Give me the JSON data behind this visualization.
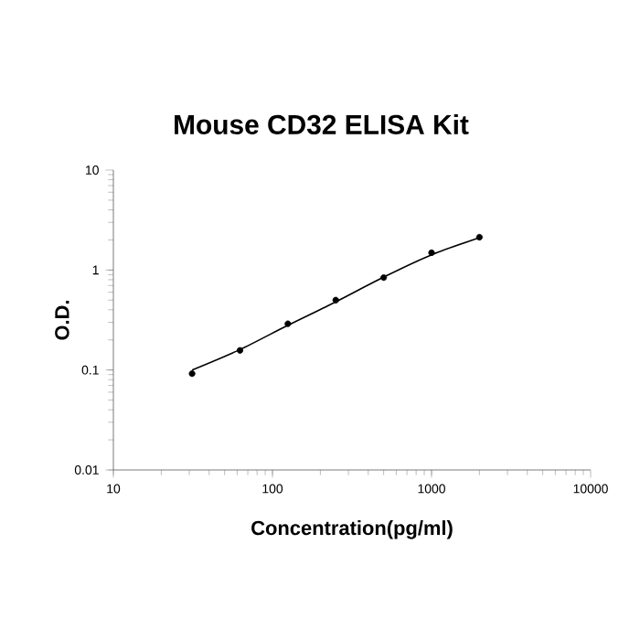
{
  "chart_data": {
    "type": "scatter",
    "title": "Mouse CD32 ELISA Kit",
    "xlabel": "Concentration(pg/ml)",
    "ylabel": "O.D.",
    "log": "xy",
    "xlim": [
      10,
      10000
    ],
    "ylim": [
      0.01,
      10
    ],
    "xticks": [
      10,
      100,
      1000,
      10000
    ],
    "yticks": [
      0.01,
      0.1,
      1,
      10
    ],
    "grid": false,
    "legend": false,
    "series": [
      {
        "marker": "circle",
        "color": "#000000",
        "x": [
          31.25,
          62.5,
          125,
          250,
          500,
          1000,
          2000
        ],
        "values": [
          0.092,
          0.157,
          0.29,
          0.5,
          0.84,
          1.49,
          2.13
        ]
      },
      {
        "type": "line",
        "color": "#000000",
        "marker": "none",
        "line_style": "solid",
        "x": [
          31.25,
          62.5,
          125,
          250,
          500,
          1000,
          2000
        ],
        "values": [
          0.1,
          0.16,
          0.28,
          0.48,
          0.85,
          1.42,
          2.1
        ]
      }
    ]
  }
}
